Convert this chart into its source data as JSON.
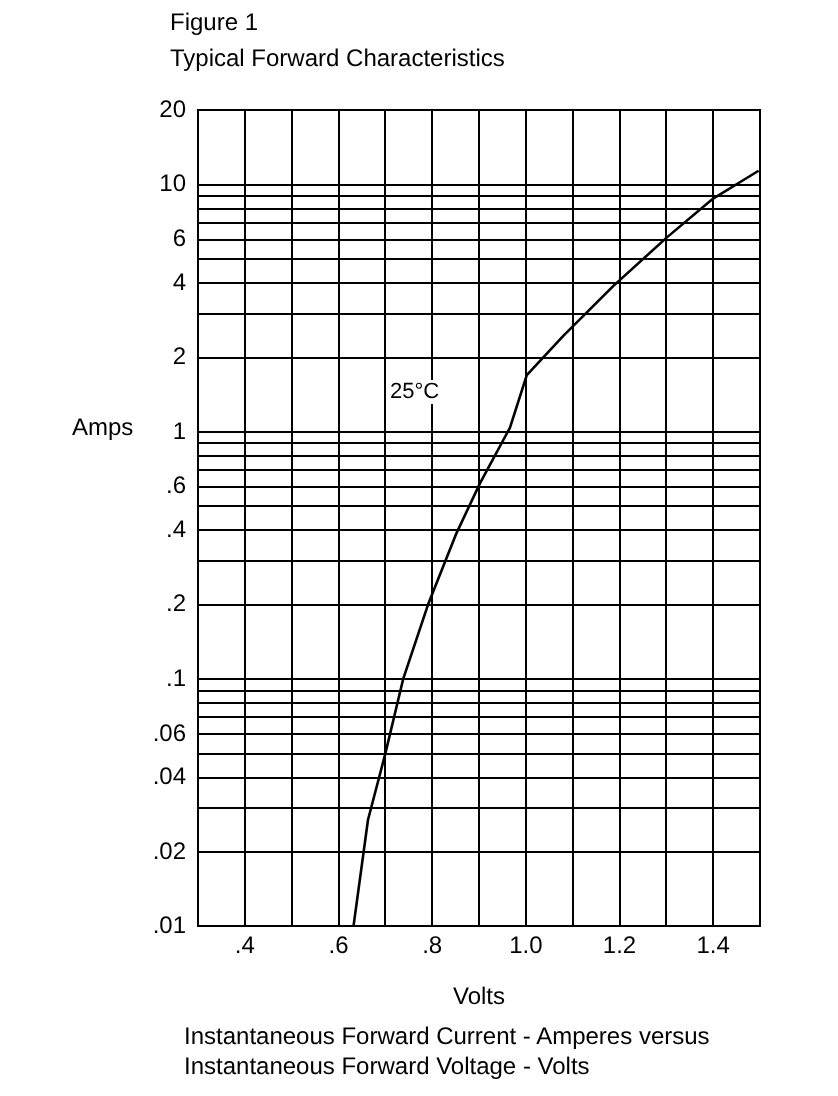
{
  "chart_data": {
    "type": "line",
    "title": "Figure 1",
    "subtitle": "Typical Forward Characteristics",
    "xlabel": "Volts",
    "ylabel": "Amps",
    "x": [
      0.632,
      0.663,
      0.7,
      0.738,
      0.791,
      0.852,
      0.902,
      0.966,
      1.002,
      1.08,
      1.187,
      1.3,
      1.4,
      1.497
    ],
    "series": [
      {
        "color": "#000000",
        "values": [
          0.01,
          0.027,
          0.05,
          0.1,
          0.2,
          0.39,
          0.62,
          1.04,
          1.7,
          2.45,
          3.9,
          6.1,
          8.8,
          11.4
        ]
      }
    ],
    "xlim": [
      0.3,
      1.5
    ],
    "xticks": [
      {
        "value": 0.4,
        "label": ".4"
      },
      {
        "value": 0.5,
        "label": null
      },
      {
        "value": 0.6,
        "label": ".6"
      },
      {
        "value": 0.7,
        "label": null
      },
      {
        "value": 0.8,
        "label": ".8"
      },
      {
        "value": 0.9,
        "label": null
      },
      {
        "value": 1.0,
        "label": "1.0"
      },
      {
        "value": 1.1,
        "label": null
      },
      {
        "value": 1.2,
        "label": "1.2"
      },
      {
        "value": 1.3,
        "label": null
      },
      {
        "value": 1.4,
        "label": "1.4"
      }
    ],
    "ylim": [
      0.01,
      20
    ],
    "yticks": [
      {
        "value": 0.01,
        "label": ".01"
      },
      {
        "value": 0.02,
        "label": ".02"
      },
      {
        "value": 0.03,
        "label": null
      },
      {
        "value": 0.04,
        "label": ".04"
      },
      {
        "value": 0.05,
        "label": null
      },
      {
        "value": 0.06,
        "label": ".06"
      },
      {
        "value": 0.07,
        "label": null
      },
      {
        "value": 0.08,
        "label": null
      },
      {
        "value": 0.09,
        "label": null
      },
      {
        "value": 0.1,
        "label": ".1"
      },
      {
        "value": 0.2,
        "label": ".2"
      },
      {
        "value": 0.3,
        "label": null
      },
      {
        "value": 0.4,
        "label": ".4"
      },
      {
        "value": 0.5,
        "label": null
      },
      {
        "value": 0.6,
        "label": ".6"
      },
      {
        "value": 0.7,
        "label": null
      },
      {
        "value": 0.8,
        "label": null
      },
      {
        "value": 0.9,
        "label": null
      },
      1,
      2,
      {
        "value": 3,
        "label": null
      },
      4,
      {
        "value": 5,
        "label": null
      },
      6,
      {
        "value": 7,
        "label": null
      },
      {
        "value": 8,
        "label": null
      },
      {
        "value": 9,
        "label": null
      },
      10,
      20
    ],
    "log": "y",
    "grid": true,
    "legend": false,
    "marker": "none",
    "line_style": "solid",
    "annotations": [
      "25°C",
      "Instantaneous Forward Current - Amperes versus Instantaneous Forward Voltage - Volts"
    ]
  }
}
